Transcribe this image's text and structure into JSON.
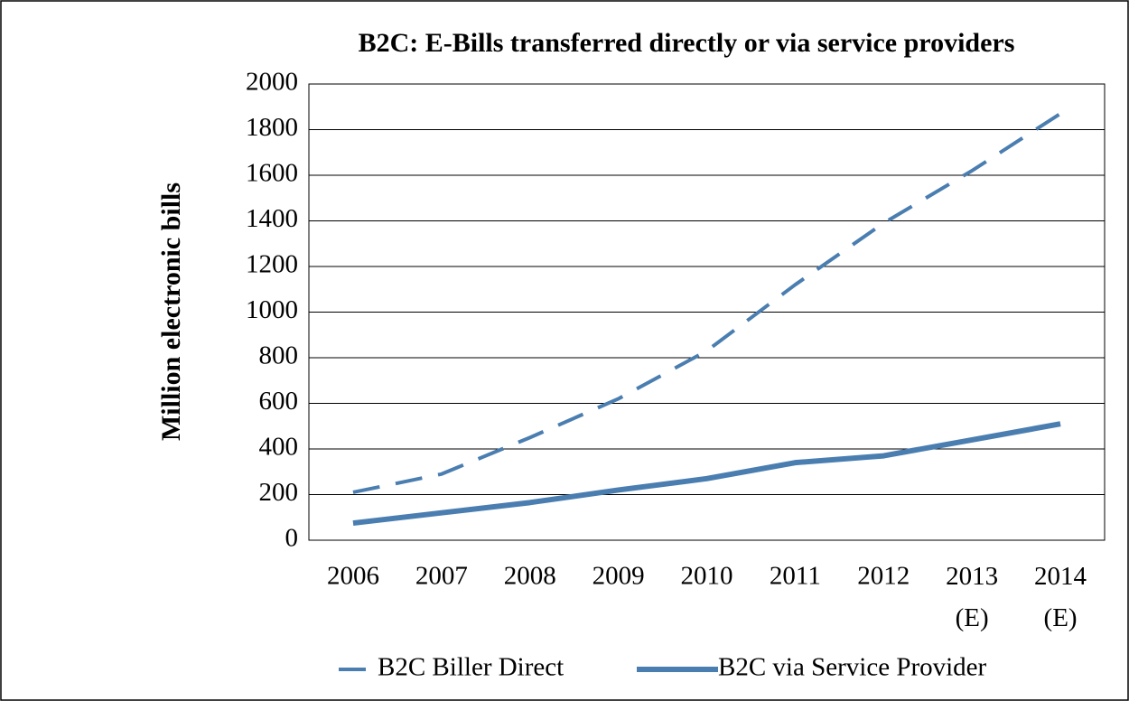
{
  "chart_data": {
    "type": "line",
    "title": "B2C: E-Bills transferred directly or via service providers",
    "y_label": "Million electronic bills",
    "categories": [
      "2006",
      "2007",
      "2008",
      "2009",
      "2010",
      "2011",
      "2012",
      "2013 (E)",
      "2014 (E)"
    ],
    "series": [
      {
        "name": "B2C Biller Direct",
        "color": "#4a7eb0",
        "dashed": true,
        "values": [
          210,
          290,
          450,
          620,
          830,
          1120,
          1390,
          1620,
          1870
        ]
      },
      {
        "name": "B2C via Service Provider",
        "color": "#4a7eb0",
        "dashed": false,
        "values": [
          75,
          120,
          165,
          220,
          270,
          340,
          370,
          440,
          510
        ]
      }
    ],
    "ylim": [
      0,
      2000
    ],
    "yticks": [
      0,
      200,
      400,
      600,
      800,
      1000,
      1200,
      1400,
      1600,
      1800,
      2000
    ],
    "grid": true,
    "legend": "bottom"
  }
}
